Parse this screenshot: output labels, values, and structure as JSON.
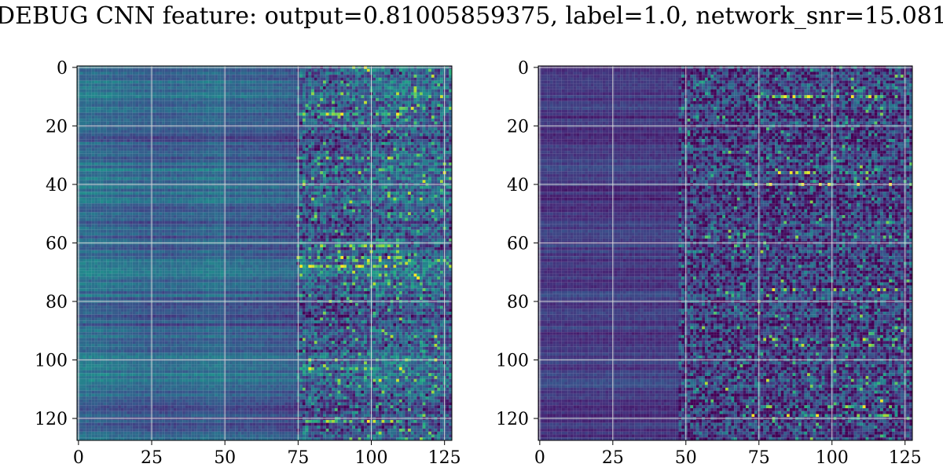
{
  "figure": {
    "title": "DEBUG CNN feature: output=0.81005859375, label=1.0, network_snr=15.081"
  },
  "chart_data": [
    {
      "type": "heatmap",
      "name": "left",
      "title": "",
      "xlabel": "",
      "ylabel": "",
      "colormap": "viridis",
      "grid": true,
      "xlim": [
        -0.5,
        127.5
      ],
      "ylim": [
        127.5,
        -0.5
      ],
      "x_ticks": [
        0,
        25,
        50,
        75,
        100,
        125
      ],
      "y_ticks": [
        0,
        20,
        40,
        60,
        80,
        100,
        120
      ],
      "rows": 128,
      "cols": 128,
      "value_range": [
        0,
        1
      ],
      "texture_profile": {
        "base_level": 0.28,
        "noise_start_col": 75,
        "noise_strength": 0.38,
        "bright_rows": [
          16,
          31,
          61,
          65,
          68,
          103,
          121
        ]
      }
    },
    {
      "type": "heatmap",
      "name": "right",
      "title": "",
      "xlabel": "",
      "ylabel": "",
      "colormap": "viridis",
      "grid": true,
      "xlim": [
        -0.5,
        127.5
      ],
      "ylim": [
        127.5,
        -0.5
      ],
      "x_ticks": [
        0,
        25,
        50,
        75,
        100,
        125
      ],
      "y_ticks": [
        0,
        20,
        40,
        60,
        80,
        100,
        120
      ],
      "rows": 128,
      "cols": 128,
      "value_range": [
        0,
        1
      ],
      "texture_profile": {
        "base_level": 0.14,
        "noise_start_col": 48,
        "noise_strength": 0.45,
        "bright_rows": [
          10,
          36,
          40,
          76,
          93,
          95,
          116,
          119
        ]
      }
    }
  ],
  "colors": {
    "grid": "#d9d9d9",
    "axis": "#000000",
    "background": "#ffffff"
  }
}
